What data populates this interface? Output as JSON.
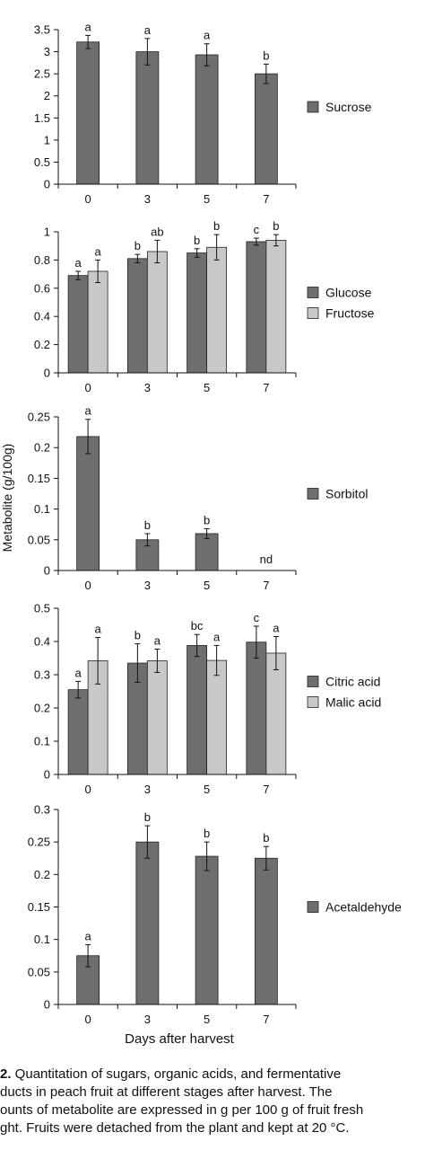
{
  "y_axis_label": "Metabolite (g/100g)",
  "x_axis_label": "Days after harvest",
  "caption": {
    "lines": [
      {
        "bold": "2.",
        "text": " Quantitation of sugars, organic acids, and fermentative"
      },
      {
        "bold": "",
        "text": "ducts in peach fruit at different stages after harvest. The"
      },
      {
        "bold": "",
        "text": "ounts of metabolite are expressed in g per 100 g of fruit fresh"
      },
      {
        "bold": "",
        "text": "ght. Fruits were detached from the plant and kept at 20 °C."
      }
    ]
  },
  "chart_data": [
    {
      "type": "bar",
      "categories": [
        "0",
        "3",
        "5",
        "7"
      ],
      "ylim": [
        0,
        3.5
      ],
      "yticks": [
        "0",
        "0.5",
        "1",
        "1.5",
        "2",
        "2.5",
        "3",
        "3.5"
      ],
      "series": [
        {
          "name": "Sucrose",
          "color": "#6e6e6e",
          "values": [
            3.22,
            3.0,
            2.93,
            2.5
          ],
          "errors": [
            0.15,
            0.3,
            0.25,
            0.22
          ],
          "labels": [
            "a",
            "a",
            "a",
            "b"
          ]
        }
      ],
      "annotations": []
    },
    {
      "type": "bar",
      "categories": [
        "0",
        "3",
        "5",
        "7"
      ],
      "ylim": [
        0,
        1
      ],
      "yticks": [
        "0",
        "0.2",
        "0.4",
        "0.6",
        "0.8",
        "1"
      ],
      "series": [
        {
          "name": "Glucose",
          "color": "#6e6e6e",
          "values": [
            0.69,
            0.81,
            0.85,
            0.93
          ],
          "errors": [
            0.03,
            0.03,
            0.03,
            0.025
          ],
          "labels": [
            "a",
            "b",
            "b",
            "c"
          ]
        },
        {
          "name": "Fructose",
          "color": "#c8c8c8",
          "values": [
            0.72,
            0.86,
            0.89,
            0.94
          ],
          "errors": [
            0.08,
            0.08,
            0.09,
            0.04
          ],
          "labels": [
            "a",
            "ab",
            "b",
            "b"
          ]
        }
      ],
      "annotations": []
    },
    {
      "type": "bar",
      "categories": [
        "0",
        "3",
        "5",
        "7"
      ],
      "ylim": [
        0,
        0.25
      ],
      "yticks": [
        "0",
        "0.05",
        "0.1",
        "0.15",
        "0.2",
        "0.25"
      ],
      "series": [
        {
          "name": "Sorbitol",
          "color": "#6e6e6e",
          "values": [
            0.218,
            0.05,
            0.06,
            0
          ],
          "errors": [
            0.028,
            0.01,
            0.008,
            0
          ],
          "labels": [
            "a",
            "b",
            "b",
            ""
          ]
        }
      ],
      "annotations": [
        {
          "category": "7",
          "text": "nd"
        }
      ]
    },
    {
      "type": "bar",
      "categories": [
        "0",
        "3",
        "5",
        "7"
      ],
      "ylim": [
        0,
        0.5
      ],
      "yticks": [
        "0",
        "0.1",
        "0.2",
        "0.3",
        "0.4",
        "0.5"
      ],
      "series": [
        {
          "name": "Citric acid",
          "color": "#6e6e6e",
          "values": [
            0.255,
            0.335,
            0.388,
            0.398
          ],
          "errors": [
            0.025,
            0.058,
            0.033,
            0.048
          ],
          "labels": [
            "a",
            "b",
            "bc",
            "c"
          ]
        },
        {
          "name": "Malic acid",
          "color": "#c8c8c8",
          "values": [
            0.342,
            0.342,
            0.343,
            0.365
          ],
          "errors": [
            0.07,
            0.035,
            0.045,
            0.05
          ],
          "labels": [
            "a",
            "a",
            "a",
            "a"
          ]
        }
      ],
      "annotations": []
    },
    {
      "type": "bar",
      "categories": [
        "0",
        "3",
        "5",
        "7"
      ],
      "ylim": [
        0,
        0.3
      ],
      "yticks": [
        "0",
        "0.05",
        "0.1",
        "0.15",
        "0.2",
        "0.25",
        "0.3"
      ],
      "series": [
        {
          "name": "Acetaldehyde",
          "color": "#6e6e6e",
          "values": [
            0.075,
            0.25,
            0.228,
            0.225
          ],
          "errors": [
            0.017,
            0.025,
            0.022,
            0.018
          ],
          "labels": [
            "a",
            "b",
            "b",
            "b"
          ]
        }
      ],
      "annotations": []
    }
  ]
}
